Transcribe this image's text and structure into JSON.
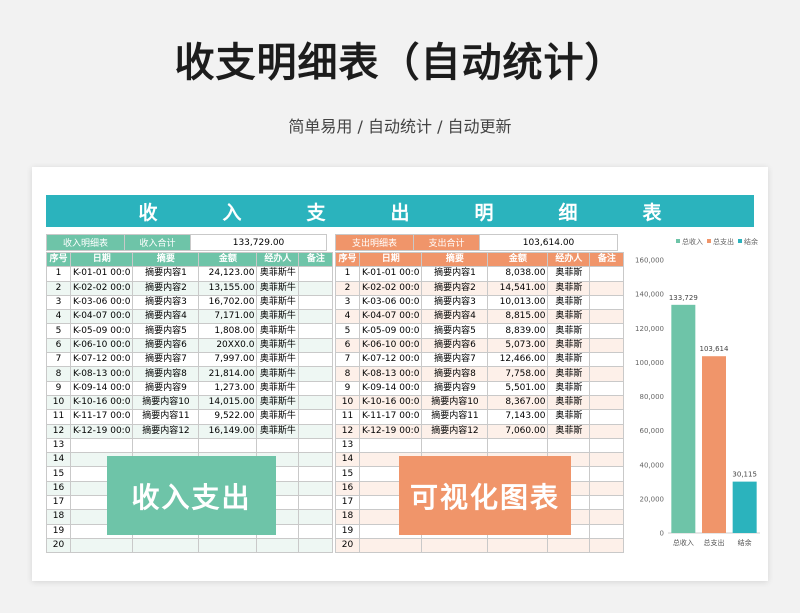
{
  "title": "收支明细表（自动统计）",
  "subtitle": "简单易用 / 自动统计 / 自动更新",
  "banner_chars": [
    "收",
    "入",
    "支",
    "出",
    "明",
    "细",
    "表"
  ],
  "income": {
    "label": "收入明细表",
    "total_label": "收入合计",
    "total_value": "133,729.00",
    "headers": [
      "序号",
      "日期",
      "摘要",
      "金额",
      "经办人",
      "备注"
    ],
    "rows": [
      [
        "1",
        "K-01-01 00:0",
        "摘要内容1",
        "24,123.00",
        "奥菲斯牛",
        ""
      ],
      [
        "2",
        "K-02-02 00:0",
        "摘要内容2",
        "13,155.00",
        "奥菲斯牛",
        ""
      ],
      [
        "3",
        "K-03-06 00:0",
        "摘要内容3",
        "16,702.00",
        "奥菲斯牛",
        ""
      ],
      [
        "4",
        "K-04-07 00:0",
        "摘要内容4",
        "7,171.00",
        "奥菲斯牛",
        ""
      ],
      [
        "5",
        "K-05-09 00:0",
        "摘要内容5",
        "1,808.00",
        "奥菲斯牛",
        ""
      ],
      [
        "6",
        "K-06-10 00:0",
        "摘要内容6",
        "20XX0.0",
        "奥菲斯牛",
        ""
      ],
      [
        "7",
        "K-07-12 00:0",
        "摘要内容7",
        "7,997.00",
        "奥菲斯牛",
        ""
      ],
      [
        "8",
        "K-08-13 00:0",
        "摘要内容8",
        "21,814.00",
        "奥菲斯牛",
        ""
      ],
      [
        "9",
        "K-09-14 00:0",
        "摘要内容9",
        "1,273.00",
        "奥菲斯牛",
        ""
      ],
      [
        "10",
        "K-10-16 00:0",
        "摘要内容10",
        "14,015.00",
        "奥菲斯牛",
        ""
      ],
      [
        "11",
        "K-11-17 00:0",
        "摘要内容11",
        "9,522.00",
        "奥菲斯牛",
        ""
      ],
      [
        "12",
        "K-12-19 00:0",
        "摘要内容12",
        "16,149.00",
        "奥菲斯牛",
        ""
      ],
      [
        "13",
        "",
        "",
        "",
        "",
        ""
      ],
      [
        "14",
        "",
        "",
        "",
        "",
        ""
      ],
      [
        "15",
        "",
        "",
        "",
        "",
        ""
      ],
      [
        "16",
        "",
        "",
        "",
        "",
        ""
      ],
      [
        "17",
        "",
        "",
        "",
        "",
        ""
      ],
      [
        "18",
        "",
        "",
        "",
        "",
        ""
      ],
      [
        "19",
        "",
        "",
        "",
        "",
        ""
      ],
      [
        "20",
        "",
        "",
        "",
        "",
        ""
      ]
    ],
    "overlay": "收入支出"
  },
  "expense": {
    "label": "支出明细表",
    "total_label": "支出合计",
    "total_value": "103,614.00",
    "headers": [
      "序号",
      "日期",
      "摘要",
      "金额",
      "经办人",
      "备注"
    ],
    "rows": [
      [
        "1",
        "K-01-01 00:0",
        "摘要内容1",
        "8,038.00",
        "奥菲斯",
        ""
      ],
      [
        "2",
        "K-02-02 00:0",
        "摘要内容2",
        "14,541.00",
        "奥菲斯",
        ""
      ],
      [
        "3",
        "K-03-06 00:0",
        "摘要内容3",
        "10,013.00",
        "奥菲斯",
        ""
      ],
      [
        "4",
        "K-04-07 00:0",
        "摘要内容4",
        "8,815.00",
        "奥菲斯",
        ""
      ],
      [
        "5",
        "K-05-09 00:0",
        "摘要内容5",
        "8,839.00",
        "奥菲斯",
        ""
      ],
      [
        "6",
        "K-06-10 00:0",
        "摘要内容6",
        "5,073.00",
        "奥菲斯",
        ""
      ],
      [
        "7",
        "K-07-12 00:0",
        "摘要内容7",
        "12,466.00",
        "奥菲斯",
        ""
      ],
      [
        "8",
        "K-08-13 00:0",
        "摘要内容8",
        "7,758.00",
        "奥菲斯",
        ""
      ],
      [
        "9",
        "K-09-14 00:0",
        "摘要内容9",
        "5,501.00",
        "奥菲斯",
        ""
      ],
      [
        "10",
        "K-10-16 00:0",
        "摘要内容10",
        "8,367.00",
        "奥菲斯",
        ""
      ],
      [
        "11",
        "K-11-17 00:0",
        "摘要内容11",
        "7,143.00",
        "奥菲斯",
        ""
      ],
      [
        "12",
        "K-12-19 00:0",
        "摘要内容12",
        "7,060.00",
        "奥菲斯",
        ""
      ],
      [
        "13",
        "",
        "",
        "",
        "",
        ""
      ],
      [
        "14",
        "",
        "",
        "",
        "",
        ""
      ],
      [
        "15",
        "",
        "",
        "",
        "",
        ""
      ],
      [
        "16",
        "",
        "",
        "",
        "",
        ""
      ],
      [
        "17",
        "",
        "",
        "",
        "",
        ""
      ],
      [
        "18",
        "",
        "",
        "",
        "",
        ""
      ],
      [
        "19",
        "",
        "",
        "",
        "",
        ""
      ],
      [
        "20",
        "",
        "",
        "",
        "",
        ""
      ]
    ],
    "overlay": "可视化图表"
  },
  "chart_data": {
    "type": "bar",
    "categories": [
      "总收入",
      "总支出",
      "结余"
    ],
    "values": [
      133729,
      103614,
      30115
    ],
    "data_labels": [
      "133,729",
      "103,614",
      "30,115"
    ],
    "colors": [
      "#6ec4a8",
      "#f0956a",
      "#2bb3bd"
    ],
    "legend": [
      "总收入",
      "总支出",
      "结余"
    ],
    "legend_position": "top",
    "ylim": [
      0,
      160000
    ],
    "yticks": [
      "0",
      "20,000",
      "40,000",
      "60,000",
      "80,000",
      "100,000",
      "120,000",
      "140,000",
      "160,000"
    ],
    "ytick_values": [
      0,
      20000,
      40000,
      60000,
      80000,
      100000,
      120000,
      140000,
      160000
    ],
    "grid": false
  }
}
